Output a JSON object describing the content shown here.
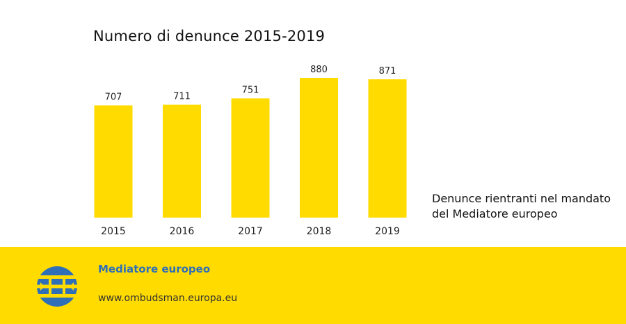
{
  "chart_data": {
    "type": "bar",
    "title": "Numero di denunce 2015-2019",
    "categories": [
      "2015",
      "2016",
      "2017",
      "2018",
      "2019"
    ],
    "series": [
      {
        "name": "Denunce rientranti nel mandato del Mediatore europeo",
        "values": [
          707,
          711,
          751,
          880,
          871
        ]
      }
    ],
    "data_labels": [
      "707",
      "711",
      "751",
      "880",
      "871"
    ],
    "ylim": [
      0,
      880
    ],
    "grid": false,
    "legend_position": "right",
    "bar_color": "#FFDB00"
  },
  "legend": {
    "line1": "Denunce rientranti nel mandato",
    "line2": "del Mediatore europeo"
  },
  "footer": {
    "org_name": "Mediatore europeo",
    "url": "www.ombudsman.europa.eu",
    "background_color": "#FFDB00",
    "accent_color": "#2E6FB7",
    "logo_icon": "european-ombudsman-logo-icon"
  }
}
